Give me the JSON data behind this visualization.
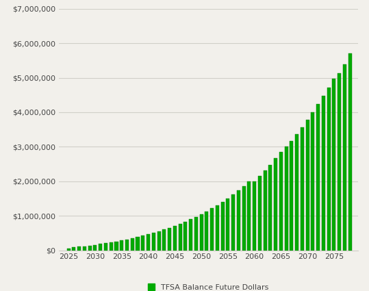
{
  "years": [
    2025,
    2026,
    2027,
    2028,
    2029,
    2030,
    2031,
    2032,
    2033,
    2034,
    2035,
    2036,
    2037,
    2038,
    2039,
    2040,
    2041,
    2042,
    2043,
    2044,
    2045,
    2046,
    2047,
    2048,
    2049,
    2050,
    2051,
    2052,
    2053,
    2054,
    2055,
    2056,
    2057,
    2058,
    2059,
    2060,
    2061,
    2062,
    2063,
    2064,
    2065,
    2066,
    2067,
    2068,
    2069,
    2070,
    2071,
    2072,
    2073,
    2074,
    2075,
    2076,
    2077,
    2078
  ],
  "values": [
    55000,
    82000,
    100000,
    118000,
    137000,
    158000,
    180000,
    204000,
    229000,
    256000,
    285000,
    316000,
    349000,
    384000,
    422000,
    462000,
    505000,
    551000,
    600000,
    652000,
    708000,
    767000,
    830000,
    897000,
    968000,
    1044000,
    1125000,
    1211000,
    1303000,
    1401000,
    1506000,
    1617000,
    1736000,
    1862000,
    1997000,
    2000000,
    2150000,
    2310000,
    2480000,
    2660000,
    2850000,
    3000000,
    3170000,
    3360000,
    3560000,
    3780000,
    4000000,
    4230000,
    4470000,
    4720000,
    4980000,
    5130000,
    5380000,
    5710000
  ],
  "bar_color": "#00aa00",
  "bar_edge_color": "#007700",
  "background_color": "#f2f0eb",
  "ylim": [
    0,
    7000000
  ],
  "yticks": [
    0,
    1000000,
    2000000,
    3000000,
    4000000,
    5000000,
    6000000,
    7000000
  ],
  "ytick_labels": [
    "$0",
    "$1,000,000",
    "$2,000,000",
    "$3,000,000",
    "$4,000,000",
    "$5,000,000",
    "$6,000,000",
    "$7,000,000"
  ],
  "xticks": [
    2025,
    2030,
    2035,
    2040,
    2045,
    2050,
    2055,
    2060,
    2065,
    2070,
    2075
  ],
  "xlim_left": 2023.2,
  "xlim_right": 2079.5,
  "legend_label": "TFSA Balance Future Dollars",
  "legend_color": "#00aa00",
  "grid_color": "#d0cfc8",
  "tick_fontsize": 8,
  "legend_fontsize": 8
}
